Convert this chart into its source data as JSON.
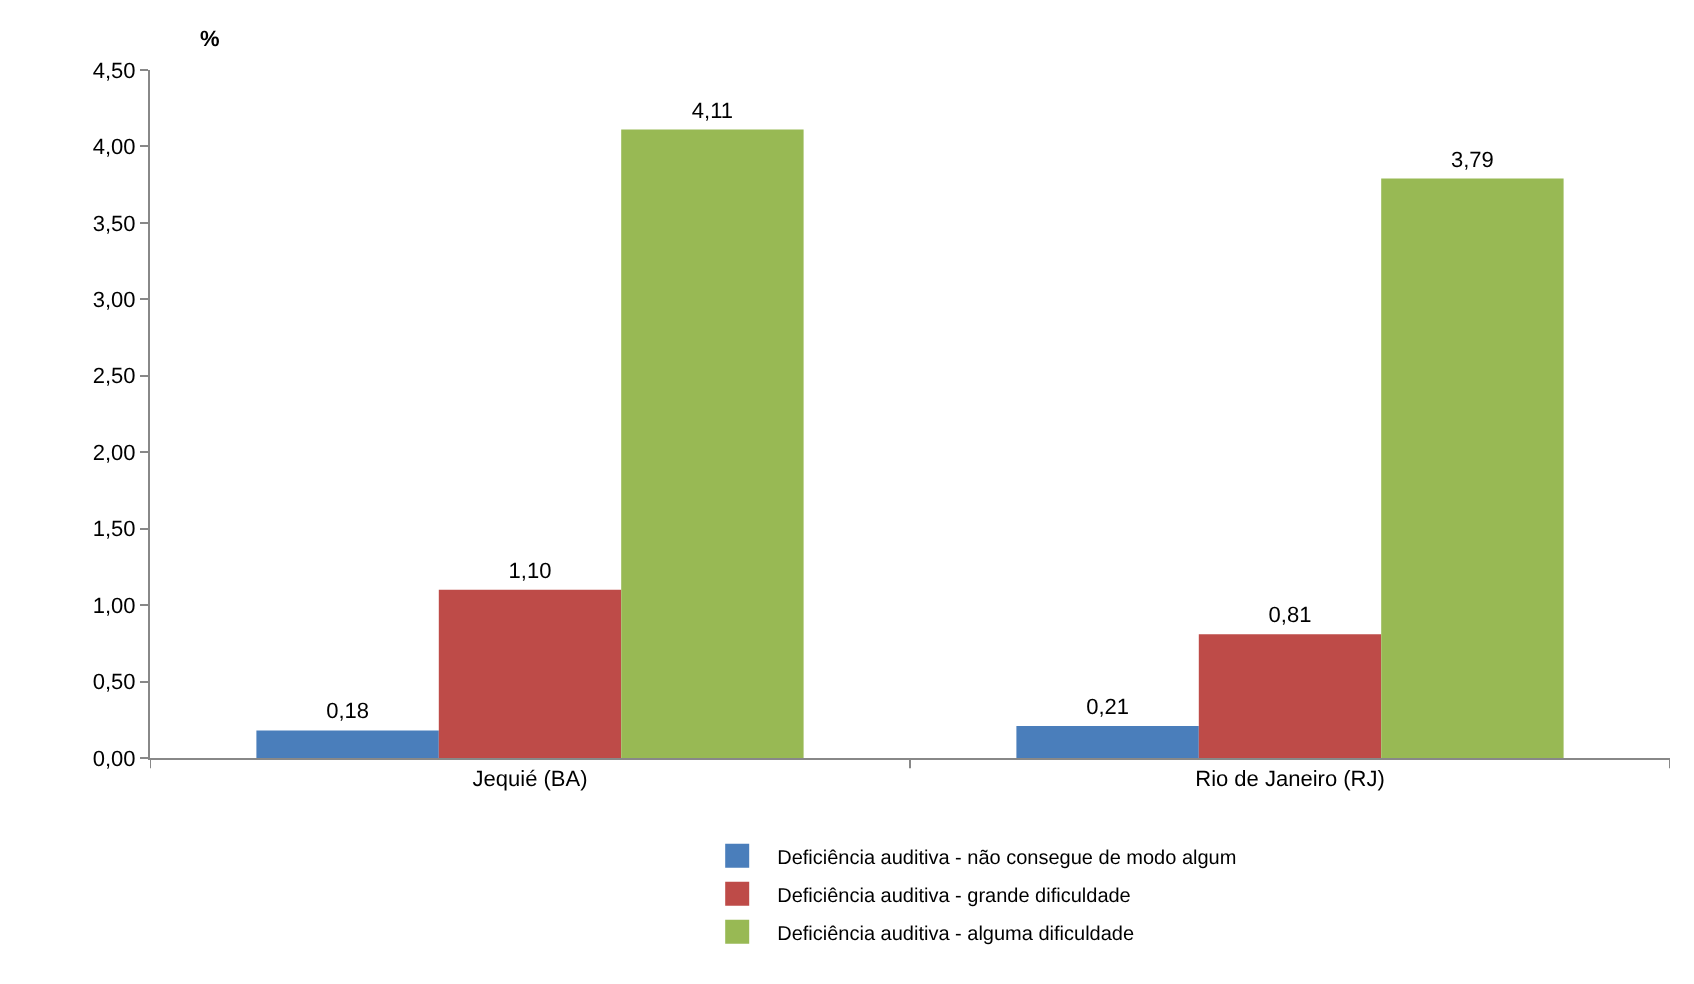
{
  "chart_data": {
    "type": "bar",
    "ylabel": "%",
    "categories": [
      "Jequié (BA)",
      "Rio de Janeiro (RJ)"
    ],
    "series": [
      {
        "name": "Deficiência auditiva - não consegue de modo algum",
        "color": "#4a7ebb",
        "values": [
          0.18,
          0.21
        ],
        "value_labels": [
          "0,18",
          "0,21"
        ]
      },
      {
        "name": "Deficiência auditiva - grande dificuldade",
        "color": "#be4b48",
        "values": [
          1.1,
          0.81
        ],
        "value_labels": [
          "1,10",
          "0,81"
        ]
      },
      {
        "name": "Deficiência auditiva - alguma dificuldade",
        "color": "#98b954",
        "values": [
          4.11,
          3.79
        ],
        "value_labels": [
          "4,11",
          "3,79"
        ]
      }
    ],
    "ylim": [
      0,
      4.5
    ],
    "yticks": [
      {
        "value": 0,
        "label": "0,00"
      },
      {
        "value": 0.5,
        "label": "0,50"
      },
      {
        "value": 1,
        "label": "1,00"
      },
      {
        "value": 1.5,
        "label": "1,50"
      },
      {
        "value": 2,
        "label": "2,00"
      },
      {
        "value": 2.5,
        "label": "2,50"
      },
      {
        "value": 3,
        "label": "3,00"
      },
      {
        "value": 3.5,
        "label": "3,50"
      },
      {
        "value": 4,
        "label": "4,00"
      },
      {
        "value": 4.5,
        "label": "4,50"
      }
    ],
    "legend": "bottom"
  }
}
